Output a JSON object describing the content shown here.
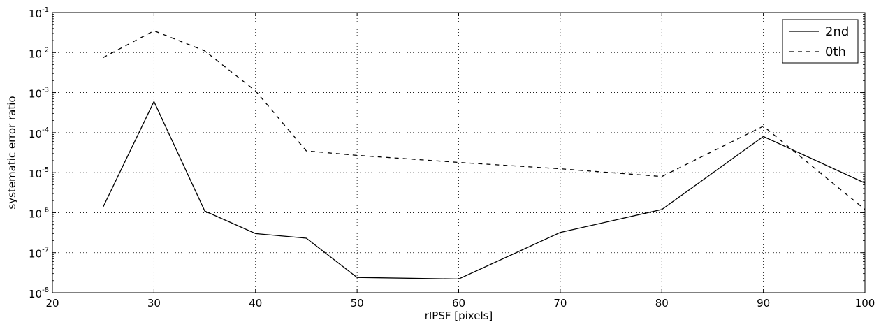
{
  "chart_data": {
    "type": "line",
    "title": "",
    "xlabel": "rIPSF [pixels]",
    "ylabel": "systematic error ratio",
    "xlim": [
      20,
      100
    ],
    "ylim": [
      1e-08,
      0.1
    ],
    "yscale": "log",
    "grid": true,
    "legend_position": "top-right",
    "x_ticks": [
      "20",
      "30",
      "40",
      "50",
      "60",
      "70",
      "80",
      "90",
      "100"
    ],
    "y_ticks": [
      {
        "base": "10",
        "exp": "-8"
      },
      {
        "base": "10",
        "exp": "-7"
      },
      {
        "base": "10",
        "exp": "-6"
      },
      {
        "base": "10",
        "exp": "-5"
      },
      {
        "base": "10",
        "exp": "-4"
      },
      {
        "base": "10",
        "exp": "-3"
      },
      {
        "base": "10",
        "exp": "-2"
      },
      {
        "base": "10",
        "exp": "-1"
      }
    ],
    "series": [
      {
        "name": "2nd",
        "style": "solid",
        "color": "#000000",
        "x": [
          25,
          30,
          35,
          40,
          45,
          50,
          60,
          70,
          80,
          90,
          100
        ],
        "y": [
          1.4e-06,
          0.0006,
          1.1e-06,
          3e-07,
          2.3e-07,
          2.4e-08,
          2.2e-08,
          3.2e-07,
          1.2e-06,
          8e-05,
          5.5e-06
        ]
      },
      {
        "name": "0th",
        "style": "dashed",
        "color": "#000000",
        "x": [
          25,
          30,
          35,
          40,
          45,
          50,
          60,
          70,
          80,
          90,
          100
        ],
        "y": [
          0.0075,
          0.035,
          0.011,
          0.0011,
          3.5e-05,
          2.7e-05,
          1.8e-05,
          1.25e-05,
          8e-06,
          0.000145,
          1.2e-06
        ]
      }
    ]
  }
}
